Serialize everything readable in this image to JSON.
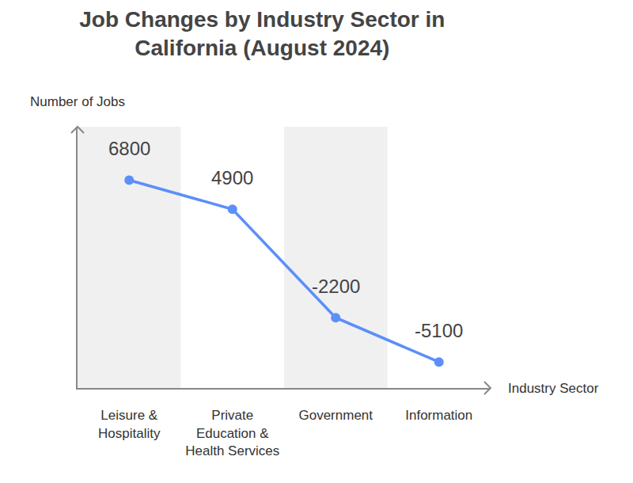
{
  "chart_data": {
    "type": "line",
    "title": "Job Changes by Industry Sector in\nCalifornia (August 2024)",
    "x_label": "Industry Sector",
    "y_label": "Number of Jobs",
    "categories": [
      "Leisure &\nHospitality",
      "Private\nEducation &\nHealth Services",
      "Government",
      "Information"
    ],
    "values": [
      6800,
      4900,
      -2200,
      -5100
    ],
    "color": "#5b8ff9",
    "marker": "circle",
    "ylim": [
      -6800,
      10300
    ],
    "grid": false,
    "data_labels": true,
    "tick_labels": "x"
  }
}
